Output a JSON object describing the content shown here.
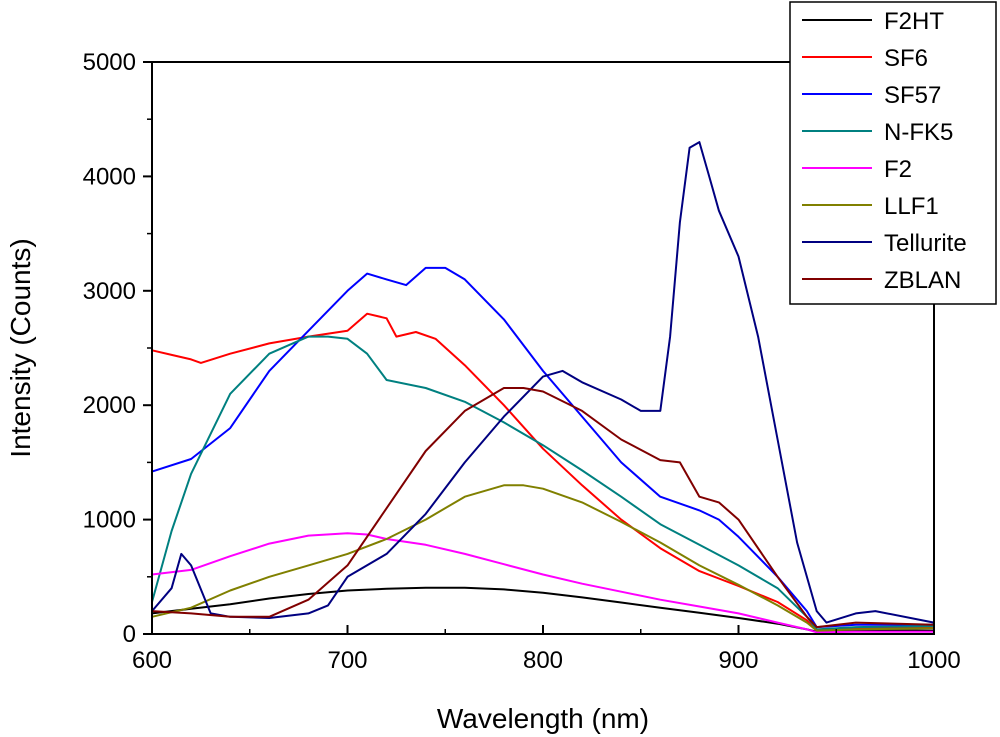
{
  "chart_data": {
    "type": "line",
    "title": "",
    "xlabel": "Wavelength (nm)",
    "ylabel": "Intensity (Counts)",
    "xlim": [
      600,
      1000
    ],
    "ylim": [
      0,
      5000
    ],
    "xticks": [
      600,
      700,
      800,
      900,
      1000
    ],
    "yticks": [
      0,
      1000,
      2000,
      3000,
      4000,
      5000
    ],
    "grid": false,
    "legend_position": "top-right",
    "series": [
      {
        "name": "F2HT",
        "color": "#000000",
        "x": [
          600,
          620,
          640,
          660,
          680,
          700,
          720,
          740,
          760,
          780,
          800,
          820,
          840,
          860,
          880,
          900,
          920,
          935,
          940,
          960,
          1000
        ],
        "y": [
          180,
          220,
          260,
          310,
          350,
          380,
          395,
          405,
          405,
          390,
          360,
          320,
          275,
          230,
          185,
          140,
          90,
          40,
          20,
          30,
          30
        ]
      },
      {
        "name": "SF6",
        "color": "#ff0000",
        "x": [
          600,
          610,
          620,
          625,
          640,
          660,
          680,
          700,
          710,
          720,
          725,
          735,
          745,
          760,
          780,
          800,
          820,
          840,
          860,
          880,
          900,
          920,
          935,
          940,
          960,
          1000
        ],
        "y": [
          2480,
          2440,
          2400,
          2370,
          2450,
          2540,
          2600,
          2650,
          2800,
          2760,
          2600,
          2640,
          2580,
          2350,
          2000,
          1620,
          1300,
          1000,
          750,
          550,
          420,
          280,
          120,
          30,
          50,
          60
        ]
      },
      {
        "name": "SF57",
        "color": "#0000ff",
        "x": [
          600,
          620,
          640,
          660,
          680,
          700,
          710,
          720,
          730,
          740,
          750,
          760,
          780,
          800,
          820,
          840,
          860,
          880,
          890,
          900,
          920,
          935,
          940,
          960,
          1000
        ],
        "y": [
          1420,
          1530,
          1800,
          2300,
          2650,
          3000,
          3150,
          3100,
          3050,
          3200,
          3200,
          3100,
          2750,
          2300,
          1900,
          1500,
          1200,
          1080,
          1000,
          850,
          500,
          200,
          60,
          80,
          80
        ]
      },
      {
        "name": "N-FK5",
        "color": "#008080",
        "x": [
          600,
          610,
          620,
          640,
          660,
          680,
          690,
          700,
          710,
          720,
          740,
          760,
          780,
          800,
          820,
          840,
          860,
          880,
          900,
          920,
          935,
          940,
          960,
          1000
        ],
        "y": [
          280,
          900,
          1400,
          2100,
          2450,
          2600,
          2600,
          2580,
          2450,
          2220,
          2150,
          2030,
          1850,
          1650,
          1430,
          1200,
          960,
          780,
          600,
          400,
          150,
          40,
          60,
          70
        ]
      },
      {
        "name": "F2",
        "color": "#ff00ff",
        "x": [
          600,
          620,
          640,
          660,
          680,
          700,
          710,
          720,
          740,
          760,
          780,
          800,
          820,
          840,
          860,
          880,
          900,
          920,
          935,
          940,
          960,
          1000
        ],
        "y": [
          520,
          560,
          680,
          790,
          860,
          880,
          870,
          830,
          780,
          700,
          610,
          520,
          440,
          370,
          300,
          240,
          180,
          100,
          40,
          15,
          20,
          20
        ]
      },
      {
        "name": "LLF1",
        "color": "#808000",
        "x": [
          600,
          620,
          640,
          660,
          680,
          700,
          720,
          740,
          760,
          780,
          790,
          800,
          820,
          840,
          860,
          880,
          900,
          920,
          935,
          940,
          960,
          1000
        ],
        "y": [
          150,
          230,
          380,
          500,
          600,
          700,
          830,
          1000,
          1200,
          1300,
          1300,
          1270,
          1150,
          980,
          800,
          600,
          430,
          250,
          100,
          30,
          40,
          50
        ]
      },
      {
        "name": "Tellurite",
        "color": "#000080",
        "x": [
          600,
          610,
          615,
          620,
          630,
          640,
          660,
          680,
          690,
          700,
          720,
          740,
          760,
          780,
          800,
          810,
          820,
          840,
          850,
          860,
          865,
          870,
          875,
          880,
          885,
          890,
          900,
          910,
          920,
          930,
          940,
          945,
          960,
          970,
          1000
        ],
        "y": [
          200,
          400,
          700,
          600,
          180,
          150,
          140,
          180,
          250,
          500,
          700,
          1050,
          1500,
          1900,
          2250,
          2300,
          2200,
          2050,
          1950,
          1950,
          2600,
          3600,
          4250,
          4300,
          4000,
          3700,
          3300,
          2600,
          1700,
          800,
          200,
          100,
          180,
          200,
          100
        ]
      },
      {
        "name": "ZBLAN",
        "color": "#800000",
        "x": [
          600,
          620,
          640,
          660,
          680,
          690,
          700,
          720,
          740,
          760,
          780,
          790,
          800,
          820,
          840,
          860,
          870,
          880,
          890,
          900,
          920,
          935,
          940,
          960,
          1000
        ],
        "y": [
          200,
          180,
          150,
          150,
          300,
          450,
          600,
          1100,
          1600,
          1950,
          2150,
          2150,
          2120,
          1950,
          1700,
          1520,
          1500,
          1200,
          1150,
          1000,
          500,
          150,
          60,
          100,
          80
        ]
      }
    ]
  }
}
